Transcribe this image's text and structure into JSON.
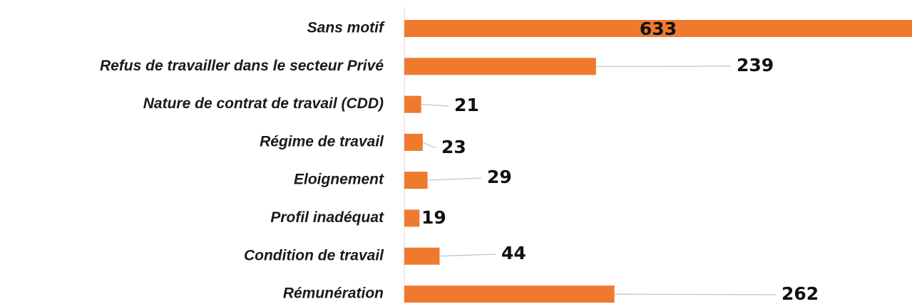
{
  "chart_data": {
    "type": "hbar",
    "categories": [
      "Sans motif",
      "Refus de travailler dans le secteur Privé",
      "Nature de contrat de travail (CDD)",
      "Régime de travail",
      "Eloignement",
      "Profil inadéquat",
      "Condition de travail",
      "Rémunération"
    ],
    "values": [
      633,
      239,
      21,
      23,
      29,
      19,
      44,
      262
    ],
    "color": "#ef7a2e",
    "xlim": [
      0,
      633
    ]
  }
}
